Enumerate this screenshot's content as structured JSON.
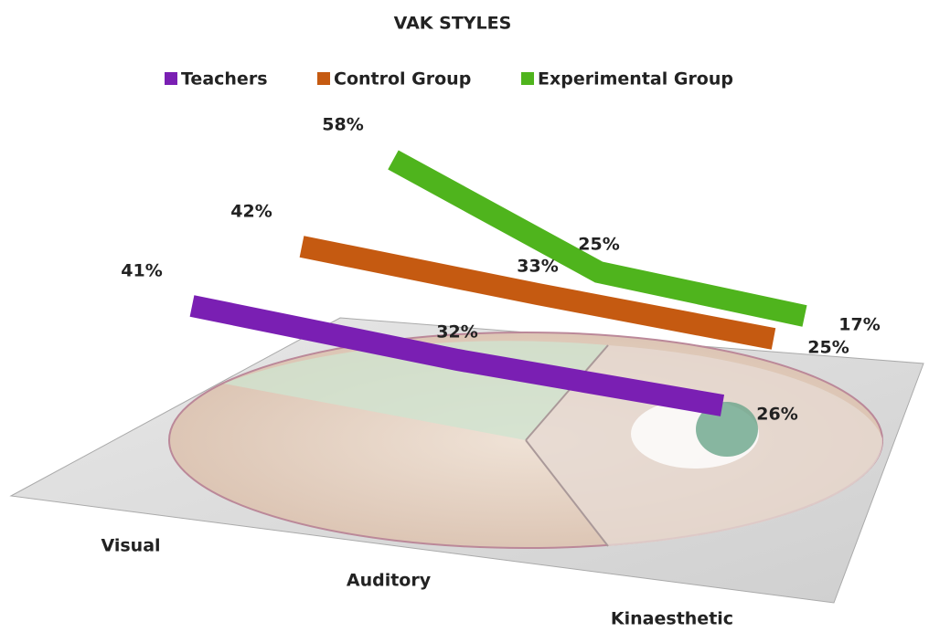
{
  "chart_data": {
    "type": "line3d",
    "title": "VAK STYLES",
    "categories": [
      "Visual",
      "Auditory",
      "Kinaesthetic"
    ],
    "series": [
      {
        "name": "Teachers",
        "color": "#7a1fb3",
        "values": [
          41,
          32,
          26
        ],
        "value_labels": [
          "41%",
          "32%",
          "26%"
        ]
      },
      {
        "name": "Control Group",
        "color": "#c55a11",
        "values": [
          42,
          33,
          25
        ],
        "value_labels": [
          "42%",
          "33%",
          "25%"
        ]
      },
      {
        "name": "Experimental Group",
        "color": "#4fb41d",
        "values": [
          58,
          25,
          17
        ],
        "value_labels": [
          "58%",
          "25%",
          "17%"
        ]
      }
    ]
  }
}
